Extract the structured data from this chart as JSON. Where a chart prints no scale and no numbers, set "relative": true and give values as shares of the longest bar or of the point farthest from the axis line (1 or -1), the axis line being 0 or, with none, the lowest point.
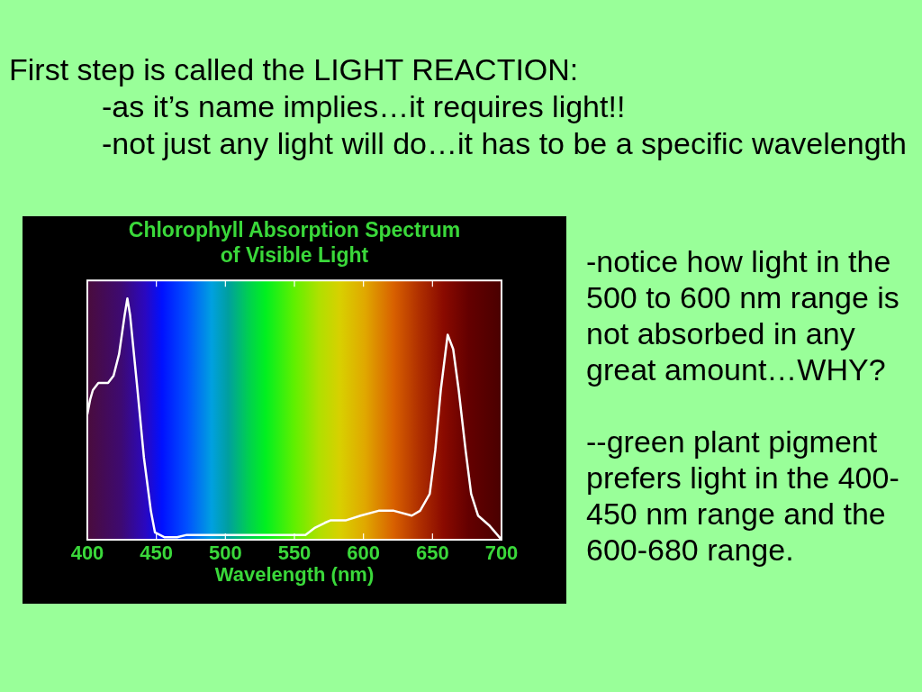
{
  "chart_data": {
    "type": "line",
    "title": "Chlorophyll Absorption Spectrum\nof Visible Light",
    "xlabel": "Wavelength (nm)",
    "x": [
      400,
      402,
      404,
      408,
      415,
      419,
      423,
      427,
      429,
      431,
      436,
      441,
      446,
      449,
      456,
      465,
      472,
      485,
      500,
      530,
      558,
      565,
      572,
      576,
      587,
      598,
      611,
      622,
      635,
      641,
      648,
      652,
      656,
      661,
      665,
      669,
      674,
      678,
      683,
      691,
      700
    ],
    "values": [
      0.52,
      0.58,
      0.62,
      0.65,
      0.65,
      0.68,
      0.77,
      0.93,
      1,
      0.93,
      0.64,
      0.34,
      0.12,
      0.03,
      0.01,
      0.01,
      0.02,
      0.02,
      0.02,
      0.02,
      0.02,
      0.05,
      0.07,
      0.08,
      0.08,
      0.1,
      0.12,
      0.12,
      0.1,
      0.12,
      0.19,
      0.37,
      0.62,
      0.85,
      0.79,
      0.62,
      0.37,
      0.19,
      0.1,
      0.06,
      0
    ],
    "color": "#ffffff",
    "relative": true,
    "xlim": [
      400,
      700
    ],
    "xticks": [
      400,
      450,
      500,
      550,
      600,
      650,
      700
    ],
    "annotations": [
      "First step is called the LIGHT REACTION:",
      "-as it’s name implies…it requires light!!",
      "-not just any light will do…it has to be a specific wavelength",
      "-notice how light in the 500 to 600 nm range is not absorbed in any great amount…WHY?",
      "--green plant pigment prefers light in the 400-450 nm range and the 600-680 range."
    ]
  }
}
